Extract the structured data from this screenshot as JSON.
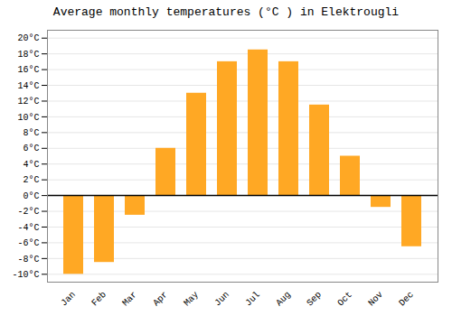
{
  "chart_data": {
    "type": "bar",
    "title": "Average monthly temperatures (°C ) in Elektrougli",
    "categories": [
      "Jan",
      "Feb",
      "Mar",
      "Apr",
      "May",
      "Jun",
      "Jul",
      "Aug",
      "Sep",
      "Oct",
      "Nov",
      "Dec"
    ],
    "values": [
      -10,
      -8.5,
      -2.5,
      6,
      13,
      17,
      18.5,
      17,
      11.5,
      5,
      -1.5,
      -6.5
    ],
    "color": "#FFA824",
    "ylim": [
      -11,
      21
    ],
    "yticks": [
      {
        "value": -10,
        "label": "-10°C"
      },
      {
        "value": -8,
        "label": "-8°C"
      },
      {
        "value": -6,
        "label": "-6°C"
      },
      {
        "value": -4,
        "label": "-4°C"
      },
      {
        "value": -2,
        "label": "-2°C"
      },
      {
        "value": 0,
        "label": "0°C"
      },
      {
        "value": 2,
        "label": "2°C"
      },
      {
        "value": 4,
        "label": "4°C"
      },
      {
        "value": 6,
        "label": "6°C"
      },
      {
        "value": 8,
        "label": "8°C"
      },
      {
        "value": 10,
        "label": "10°C"
      },
      {
        "value": 12,
        "label": "12°C"
      },
      {
        "value": 14,
        "label": "14°C"
      },
      {
        "value": 16,
        "label": "16°C"
      },
      {
        "value": 18,
        "label": "18°C"
      },
      {
        "value": 20,
        "label": "20°C"
      }
    ],
    "grid": true
  }
}
